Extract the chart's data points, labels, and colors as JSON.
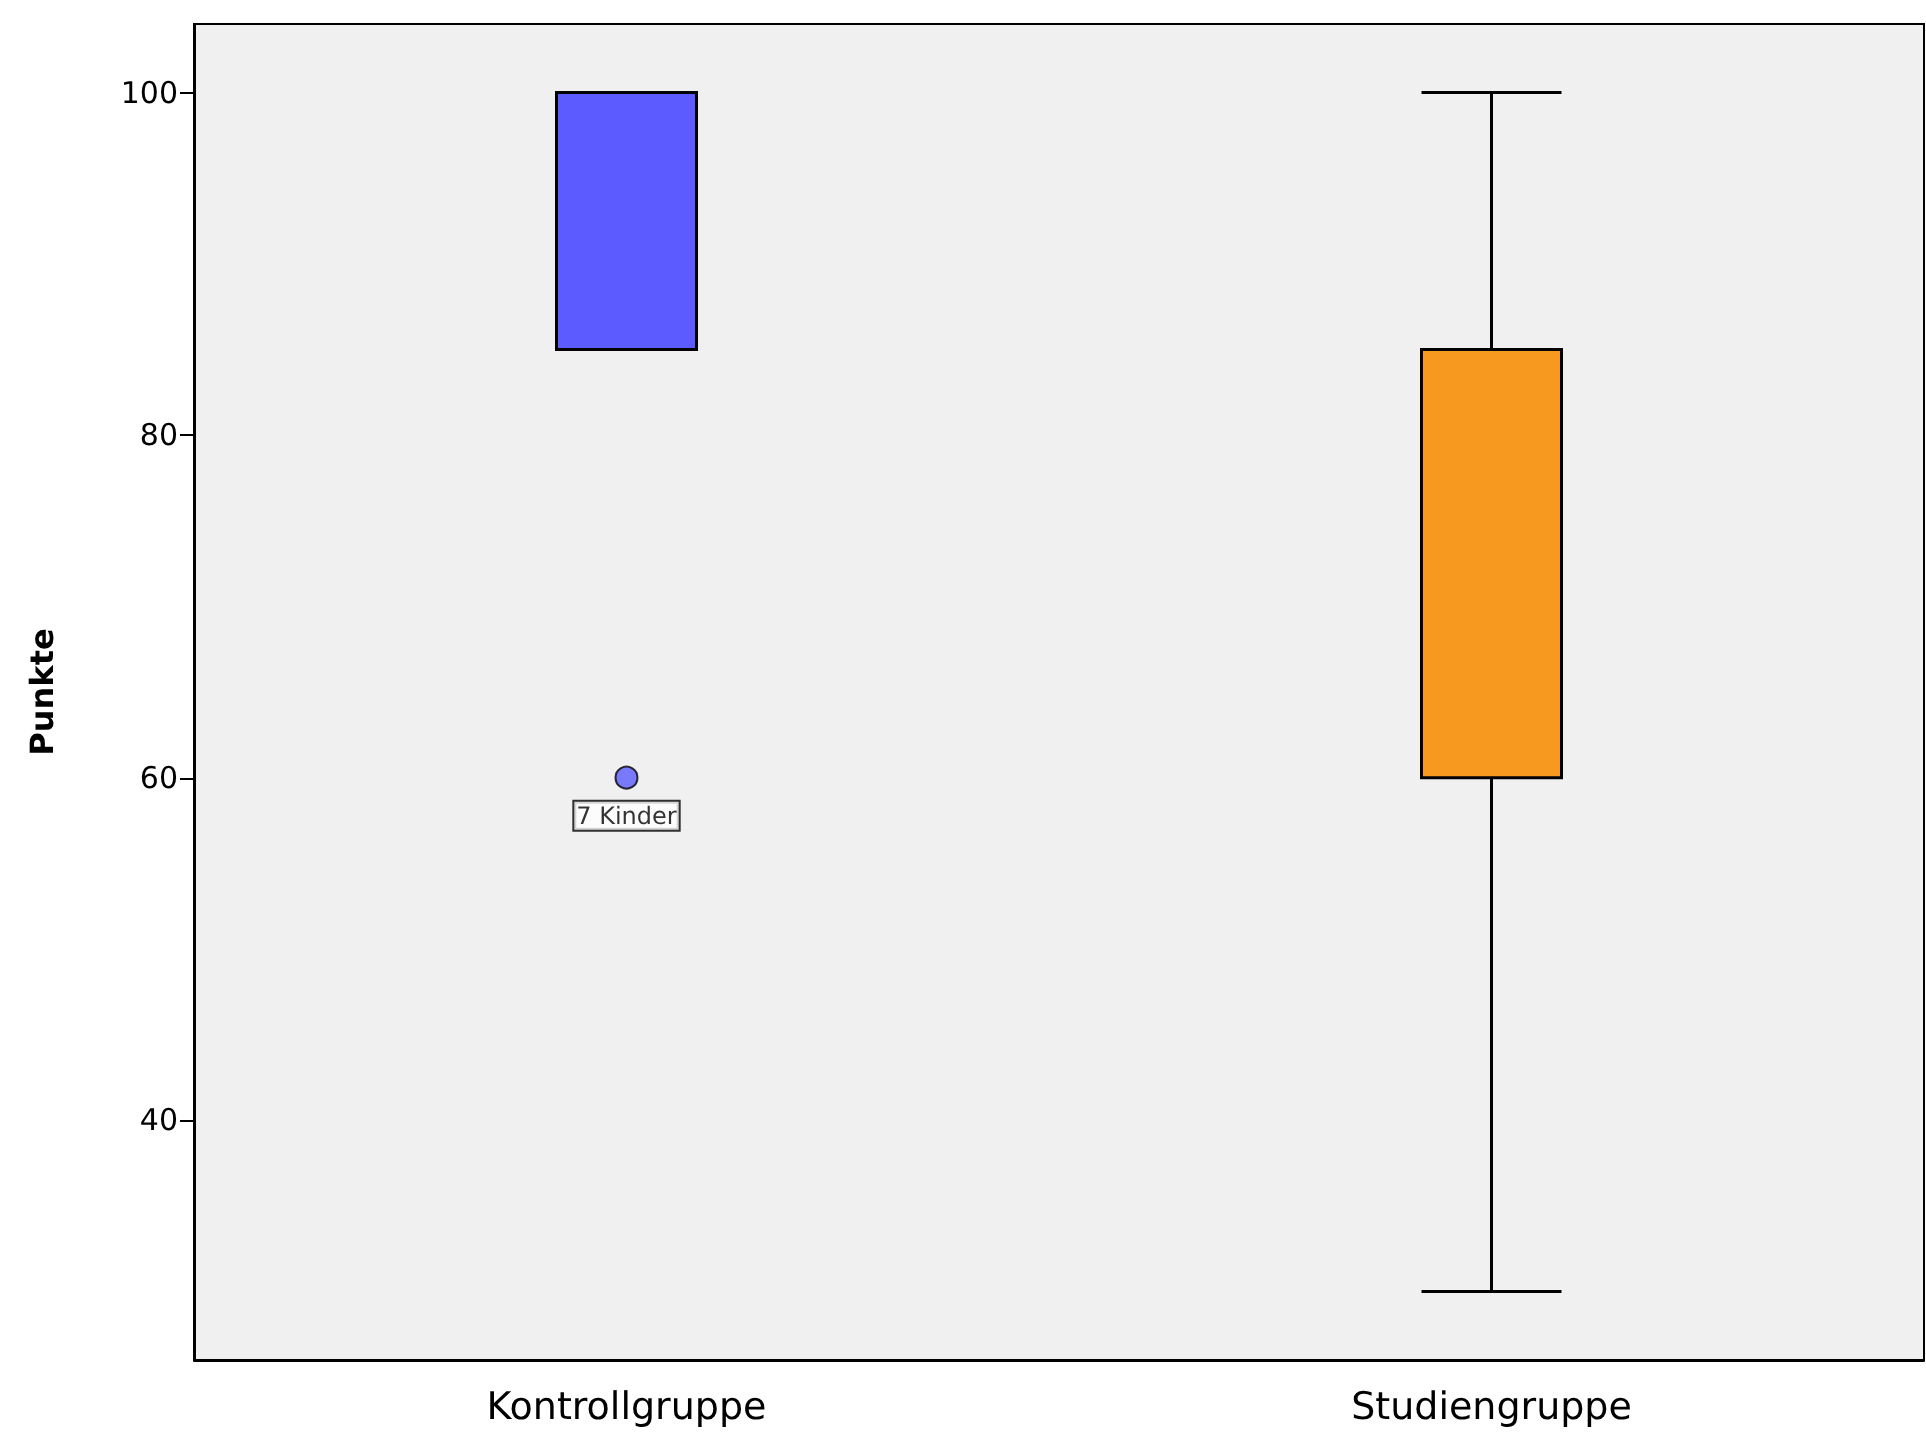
{
  "chart_data": {
    "type": "box",
    "ylabel": "Punkte",
    "categories": [
      "Kontrollgruppe",
      "Studiengruppe"
    ],
    "boxes": [
      {
        "low": 85,
        "q1": 85,
        "median": 85,
        "q3": 100,
        "high": 100,
        "outliers": [
          60
        ]
      },
      {
        "low": 30,
        "q1": 60,
        "median": 85,
        "q3": 85,
        "high": 100
      }
    ],
    "colors": [
      "#5b5bff",
      "#f7991f"
    ],
    "ylim": [
      26,
      104
    ],
    "yticks": [
      40,
      60,
      80,
      100
    ],
    "grid": false,
    "annotations": [
      "7 Kinder"
    ]
  }
}
